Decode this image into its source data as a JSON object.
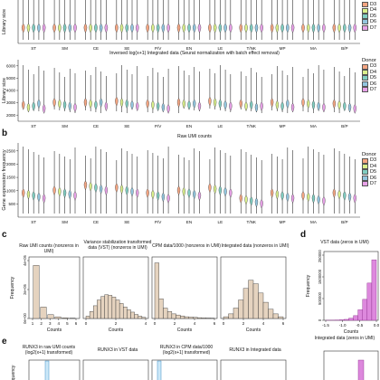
{
  "panels": {
    "b": "b",
    "c": "c",
    "d": "d",
    "e": "e"
  },
  "violin_groups": [
    "ST",
    "SM",
    "CE",
    "SE",
    "P/V",
    "EN",
    "LE",
    "T/NK",
    "MP",
    "MA",
    "B/P"
  ],
  "donor_legend": {
    "title": "Donor",
    "entries": [
      "D3",
      "D4",
      "D5",
      "D6",
      "D7"
    ],
    "colors": [
      "#f4a582",
      "#d9ef8b",
      "#80cdc1",
      "#92c5de",
      "#e7a1e7"
    ]
  },
  "chart_data": [
    {
      "type": "violin",
      "id": "top-partial",
      "title": "",
      "ylabel": "Library size",
      "categories": [
        "ST",
        "SM",
        "CE",
        "SE",
        "P/V",
        "EN",
        "LE",
        "T/NK",
        "MP",
        "MA",
        "B/P"
      ],
      "series": [
        {
          "name": "D3",
          "values": [
            1200,
            1300,
            900,
            1000,
            1100,
            1200,
            1100,
            1200,
            1300,
            1000,
            1100
          ]
        },
        {
          "name": "D4",
          "values": [
            1100,
            1200,
            1000,
            1100,
            1000,
            1100,
            1000,
            1100,
            1200,
            1100,
            1000
          ]
        },
        {
          "name": "D5",
          "values": [
            1000,
            1100,
            900,
            1000,
            1100,
            1000,
            1100,
            1000,
            1100,
            1000,
            1100
          ]
        },
        {
          "name": "D6",
          "values": [
            1300,
            1200,
            1100,
            1200,
            1300,
            1200,
            1300,
            1200,
            1300,
            1200,
            1300
          ]
        },
        {
          "name": "D7",
          "values": [
            1200,
            1100,
            1000,
            1100,
            1200,
            1100,
            1200,
            1100,
            1200,
            1100,
            1200
          ]
        }
      ]
    },
    {
      "type": "violin",
      "id": "integrated",
      "title": "Inversed log(x+1) Integrated data (Seurat normalization with batch effect removal)",
      "ylabel": "Library size",
      "yticks": [
        2000,
        3000,
        4000,
        5000,
        6000
      ],
      "ylim": [
        1500,
        6500
      ],
      "categories": [
        "ST",
        "SM",
        "CE",
        "SE",
        "P/V",
        "EN",
        "LE",
        "T/NK",
        "MP",
        "MA",
        "B/P"
      ],
      "series": [
        {
          "name": "D3",
          "values": [
            2800,
            3000,
            3000,
            3100,
            2900,
            3000,
            3100,
            2900,
            3000,
            3000,
            2900
          ]
        },
        {
          "name": "D4",
          "values": [
            2600,
            2900,
            2900,
            3000,
            2800,
            2900,
            3000,
            2700,
            2800,
            2900,
            2800
          ]
        },
        {
          "name": "D5",
          "values": [
            2700,
            2800,
            2800,
            2900,
            2700,
            2800,
            2900,
            2800,
            2700,
            2800,
            2700
          ]
        },
        {
          "name": "D6",
          "values": [
            2900,
            2700,
            3000,
            2800,
            2600,
            2900,
            2800,
            2600,
            2900,
            2700,
            2600
          ]
        },
        {
          "name": "D7",
          "values": [
            2500,
            2600,
            2700,
            2700,
            2500,
            2700,
            2700,
            2700,
            2600,
            2600,
            2500
          ]
        }
      ]
    },
    {
      "type": "violin",
      "id": "raw-umi",
      "title": "Raw UMI counts",
      "ylabel": "Gene expression frequency",
      "yticks": [
        500,
        1000,
        1500,
        2000,
        2500
      ],
      "ylim": [
        0,
        2800
      ],
      "categories": [
        "ST",
        "SM",
        "CE",
        "SE",
        "P/V",
        "EN",
        "LE",
        "T/NK",
        "MP",
        "MA",
        "B/P"
      ],
      "series": [
        {
          "name": "D3",
          "values": [
            900,
            1000,
            1200,
            1100,
            900,
            1000,
            1100,
            700,
            900,
            800,
            900
          ]
        },
        {
          "name": "D4",
          "values": [
            850,
            950,
            1150,
            1050,
            850,
            950,
            1050,
            650,
            850,
            750,
            850
          ]
        },
        {
          "name": "D5",
          "values": [
            800,
            900,
            1100,
            1000,
            800,
            900,
            1000,
            600,
            800,
            700,
            800
          ]
        },
        {
          "name": "D6",
          "values": [
            750,
            850,
            1050,
            950,
            750,
            850,
            950,
            550,
            750,
            650,
            750
          ]
        },
        {
          "name": "D7",
          "values": [
            700,
            800,
            1000,
            900,
            700,
            800,
            900,
            500,
            700,
            600,
            700
          ]
        }
      ]
    },
    {
      "type": "bar",
      "id": "c1",
      "title": "Raw UMI counts (nonzeros in UMI)",
      "ylabel": "Frequency",
      "xlabel": "Counts",
      "xticks": [
        1,
        2,
        3,
        4,
        5,
        6
      ],
      "yticks": [
        "0e+00",
        "2e+05",
        "4e+05"
      ],
      "categories": [
        1,
        2,
        3,
        4,
        5,
        6
      ],
      "values": [
        440000,
        95000,
        32000,
        14000,
        6000,
        3000
      ],
      "ylim": [
        0,
        480000
      ]
    },
    {
      "type": "bar",
      "id": "c2",
      "title": "Variance stabilization transformed data (VST) (nonzeros in UMI)",
      "xlabel": "Counts",
      "xticks": [
        0,
        2,
        4
      ],
      "categories": [
        0,
        0.3,
        0.6,
        0.9,
        1.2,
        1.5,
        1.8,
        2.1,
        2.4,
        2.7,
        3.0,
        3.3,
        3.6,
        3.9,
        4.2,
        4.5
      ],
      "values": [
        20,
        60,
        110,
        160,
        190,
        205,
        200,
        185,
        160,
        130,
        100,
        75,
        55,
        35,
        20,
        10
      ],
      "ylim": [
        0,
        500
      ]
    },
    {
      "type": "bar",
      "id": "c3",
      "title": "CPM data/1000 (nonzeros in UMI)",
      "xlabel": "Counts",
      "xticks": [
        0,
        2,
        4,
        6
      ],
      "categories": [
        0,
        0.4,
        0.8,
        1.2,
        1.6,
        2.0,
        2.4,
        2.8,
        3.2,
        3.6,
        4.0,
        4.4,
        4.8,
        5.2
      ],
      "values": [
        480,
        170,
        90,
        60,
        40,
        30,
        22,
        15,
        12,
        10,
        7,
        5,
        4,
        3
      ],
      "ylim": [
        0,
        500
      ]
    },
    {
      "type": "bar",
      "id": "c4",
      "title": "Integrated data (nonzeros in UMI)",
      "xlabel": "Counts",
      "xticks": [
        0,
        2,
        4,
        6
      ],
      "categories": [
        0,
        0.5,
        1.0,
        1.5,
        2.0,
        2.5,
        3.0,
        3.5,
        4.0,
        4.5,
        5.0,
        5.5
      ],
      "values": [
        15,
        40,
        90,
        160,
        260,
        330,
        300,
        220,
        140,
        80,
        40,
        15
      ],
      "ylim": [
        0,
        500
      ]
    },
    {
      "type": "bar",
      "id": "d1",
      "title": "VST data (zeros in UMI)",
      "ylabel": "Frequency",
      "xlabel": "Counts",
      "xticks": [
        "-1.5",
        "-1.0",
        "-0.5",
        "0.0"
      ],
      "yticks": [
        "0",
        "500000",
        "1500000",
        "2500000"
      ],
      "categories": [
        -1.5,
        -1.35,
        -1.2,
        -1.05,
        -0.9,
        -0.75,
        -0.6,
        -0.45,
        -0.3,
        -0.15,
        0.0
      ],
      "values": [
        2000,
        5000,
        10000,
        20000,
        40000,
        90000,
        200000,
        450000,
        900000,
        1600000,
        2600000
      ],
      "ylim": [
        0,
        2800000
      ]
    },
    {
      "type": "bar",
      "id": "d2",
      "title": "Integrated data (zeros in UMI)",
      "categories": [
        0
      ],
      "values": [
        1
      ],
      "ylim": [
        0,
        1
      ]
    },
    {
      "type": "bar",
      "id": "e1",
      "title": "RUNX3 in raw UMI counts (log2(x+1) transformed)",
      "ylabel": "quency",
      "categories": [
        0
      ],
      "values": [
        1
      ],
      "ylim": [
        0,
        1
      ]
    },
    {
      "type": "bar",
      "id": "e2",
      "title": "RUNX3 in VST data",
      "categories": [],
      "values": [],
      "ylim": [
        0,
        1
      ]
    },
    {
      "type": "bar",
      "id": "e3",
      "title": "RUNX3 in CPM data/1000 (log2(x+1) transformed)",
      "categories": [
        0
      ],
      "values": [
        1
      ],
      "ylim": [
        0,
        1
      ]
    },
    {
      "type": "bar",
      "id": "e4",
      "title": "RUNX3 in Integrated data",
      "categories": [],
      "values": [],
      "ylim": [
        0,
        1
      ]
    }
  ]
}
